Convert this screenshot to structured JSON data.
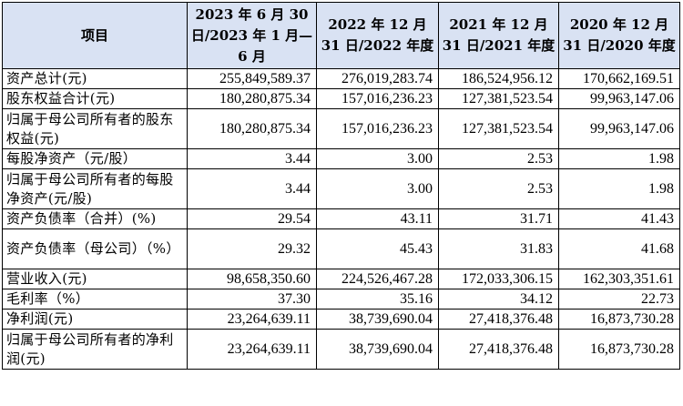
{
  "table": {
    "headers": [
      "项目",
      "2023 年 6 月 30 日/2023 年 1 月—6 月",
      "2022 年 12 月 31 日/2022 年度",
      "2021 年 12 月 31 日/2021 年度",
      "2020 年 12 月 31 日/2020 年度"
    ],
    "rows": [
      {
        "label": "资产总计(元)",
        "values": [
          "255,849,589.37",
          "276,019,283.74",
          "186,524,956.12",
          "170,662,169.51"
        ]
      },
      {
        "label": "股东权益合计(元)",
        "values": [
          "180,280,875.34",
          "157,016,236.23",
          "127,381,523.54",
          "99,963,147.06"
        ]
      },
      {
        "label": "归属于母公司所有者的股东权益(元)",
        "values": [
          "180,280,875.34",
          "157,016,236.23",
          "127,381,523.54",
          "99,963,147.06"
        ]
      },
      {
        "label": "每股净资产（元/股）",
        "values": [
          "3.44",
          "3.00",
          "2.53",
          "1.98"
        ]
      },
      {
        "label": "归属于母公司所有者的每股净资产(元/股)",
        "values": [
          "3.44",
          "3.00",
          "2.53",
          "1.98"
        ]
      },
      {
        "label": "资产负债率（合并）(%)",
        "values": [
          "29.54",
          "43.11",
          "31.71",
          "41.43"
        ]
      },
      {
        "label": "资产负债率（母公司）（%）",
        "values": [
          "29.32",
          "45.43",
          "31.83",
          "41.68"
        ]
      },
      {
        "label": "营业收入(元)",
        "values": [
          "98,658,350.60",
          "224,526,467.28",
          "172,033,306.15",
          "162,303,351.61"
        ]
      },
      {
        "label": "毛利率（%）",
        "values": [
          "37.30",
          "35.16",
          "34.12",
          "22.73"
        ]
      },
      {
        "label": "净利润(元)",
        "values": [
          "23,264,639.11",
          "38,739,690.04",
          "27,418,376.48",
          "16,873,730.28"
        ]
      },
      {
        "label": "归属于母公司所有者的净利润(元)",
        "values": [
          "23,264,639.11",
          "38,739,690.04",
          "27,418,376.48",
          "16,873,730.28"
        ]
      }
    ]
  }
}
